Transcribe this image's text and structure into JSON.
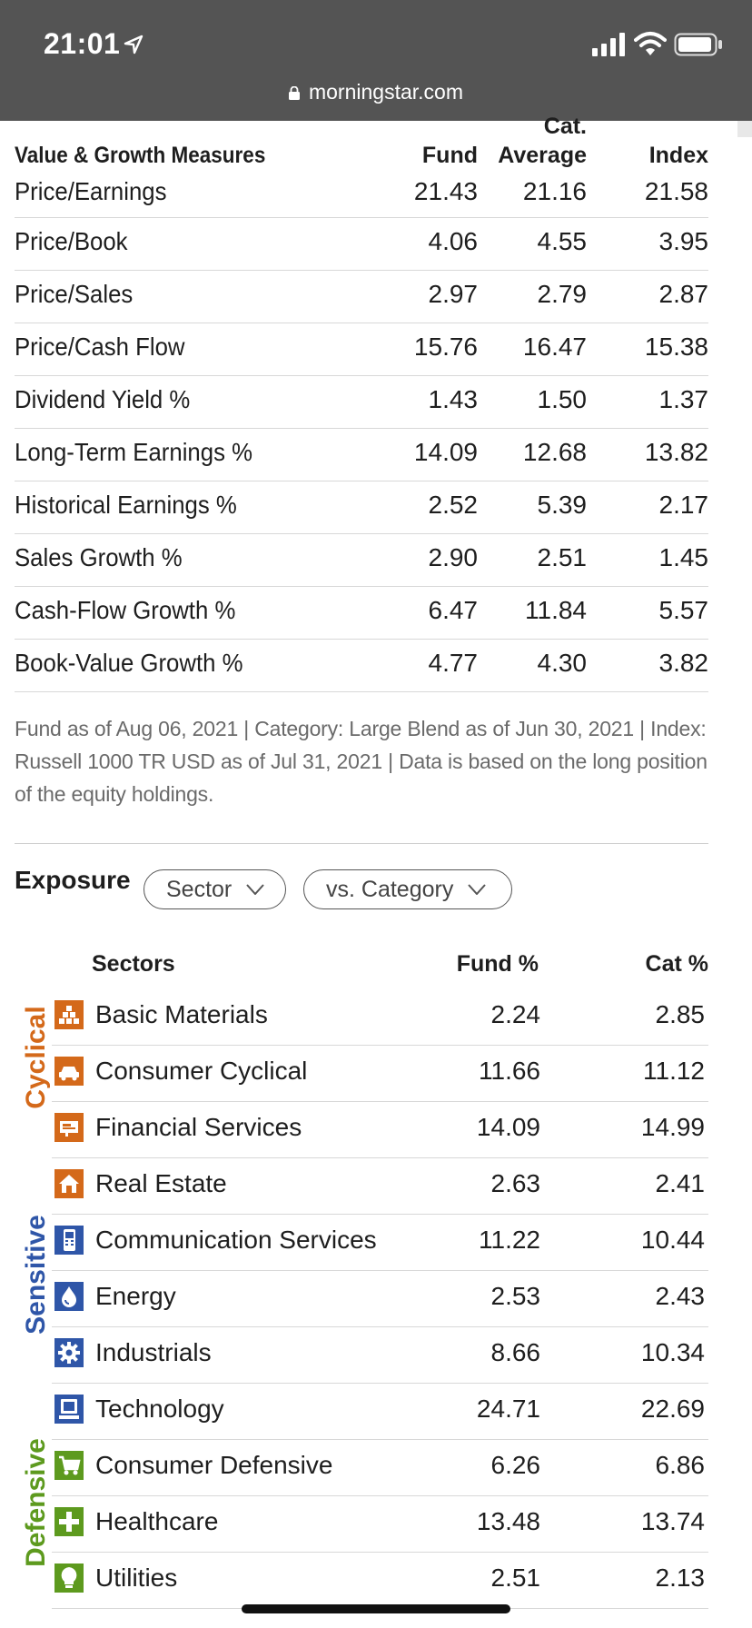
{
  "status_bar": {
    "time": "21:01",
    "url": "morningstar.com"
  },
  "value_growth": {
    "header": {
      "title": "Value & Growth Measures",
      "fund": "Fund",
      "cat_line1": "Cat.",
      "cat_line2": "Average",
      "index": "Index"
    },
    "rows": [
      {
        "label": "Price/Earnings",
        "fund": "21.43",
        "cat": "21.16",
        "index": "21.58"
      },
      {
        "label": "Price/Book",
        "fund": "4.06",
        "cat": "4.55",
        "index": "3.95"
      },
      {
        "label": "Price/Sales",
        "fund": "2.97",
        "cat": "2.79",
        "index": "2.87"
      },
      {
        "label": "Price/Cash Flow",
        "fund": "15.76",
        "cat": "16.47",
        "index": "15.38"
      },
      {
        "label": "Dividend Yield %",
        "fund": "1.43",
        "cat": "1.50",
        "index": "1.37"
      },
      {
        "label": "Long-Term Earnings %",
        "fund": "14.09",
        "cat": "12.68",
        "index": "13.82"
      },
      {
        "label": "Historical Earnings %",
        "fund": "2.52",
        "cat": "5.39",
        "index": "2.17"
      },
      {
        "label": "Sales Growth %",
        "fund": "2.90",
        "cat": "2.51",
        "index": "1.45"
      },
      {
        "label": "Cash-Flow Growth %",
        "fund": "6.47",
        "cat": "11.84",
        "index": "5.57"
      },
      {
        "label": "Book-Value Growth %",
        "fund": "4.77",
        "cat": "4.30",
        "index": "3.82"
      }
    ],
    "note": "Fund as of Aug 06, 2021 | Category: Large Blend as of Jun 30, 2021 | Index: Russell 1000 TR USD as of Jul 31, 2021 | Data is based on the long position of the equity holdings."
  },
  "exposure": {
    "title": "Exposure",
    "dropdown1": "Sector",
    "dropdown2": "vs. Category",
    "header": {
      "sectors": "Sectors",
      "fund": "Fund  %",
      "cat": "Cat  %"
    },
    "groups": {
      "cyclical": {
        "label": "Cyclical",
        "color": "#d4691a"
      },
      "sensitive": {
        "label": "Sensitive",
        "color": "#2f56a8"
      },
      "defensive": {
        "label": "Defensive",
        "color": "#5d9a1e"
      }
    },
    "rows": [
      {
        "label": "Basic Materials",
        "fund": "2.24",
        "cat": "2.85",
        "icon": "basic-materials-icon"
      },
      {
        "label": "Consumer Cyclical",
        "fund": "11.66",
        "cat": "11.12",
        "icon": "consumer-cyclical-icon"
      },
      {
        "label": "Financial Services",
        "fund": "14.09",
        "cat": "14.99",
        "icon": "financial-services-icon"
      },
      {
        "label": "Real Estate",
        "fund": "2.63",
        "cat": "2.41",
        "icon": "real-estate-icon"
      },
      {
        "label": "Communication Services",
        "fund": "11.22",
        "cat": "10.44",
        "icon": "communication-services-icon"
      },
      {
        "label": "Energy",
        "fund": "2.53",
        "cat": "2.43",
        "icon": "energy-icon"
      },
      {
        "label": "Industrials",
        "fund": "8.66",
        "cat": "10.34",
        "icon": "industrials-icon"
      },
      {
        "label": "Technology",
        "fund": "24.71",
        "cat": "22.69",
        "icon": "technology-icon"
      },
      {
        "label": "Consumer Defensive",
        "fund": "6.26",
        "cat": "6.86",
        "icon": "consumer-defensive-icon"
      },
      {
        "label": "Healthcare",
        "fund": "13.48",
        "cat": "13.74",
        "icon": "healthcare-icon"
      },
      {
        "label": "Utilities",
        "fund": "2.51",
        "cat": "2.13",
        "icon": "utilities-icon"
      }
    ]
  }
}
